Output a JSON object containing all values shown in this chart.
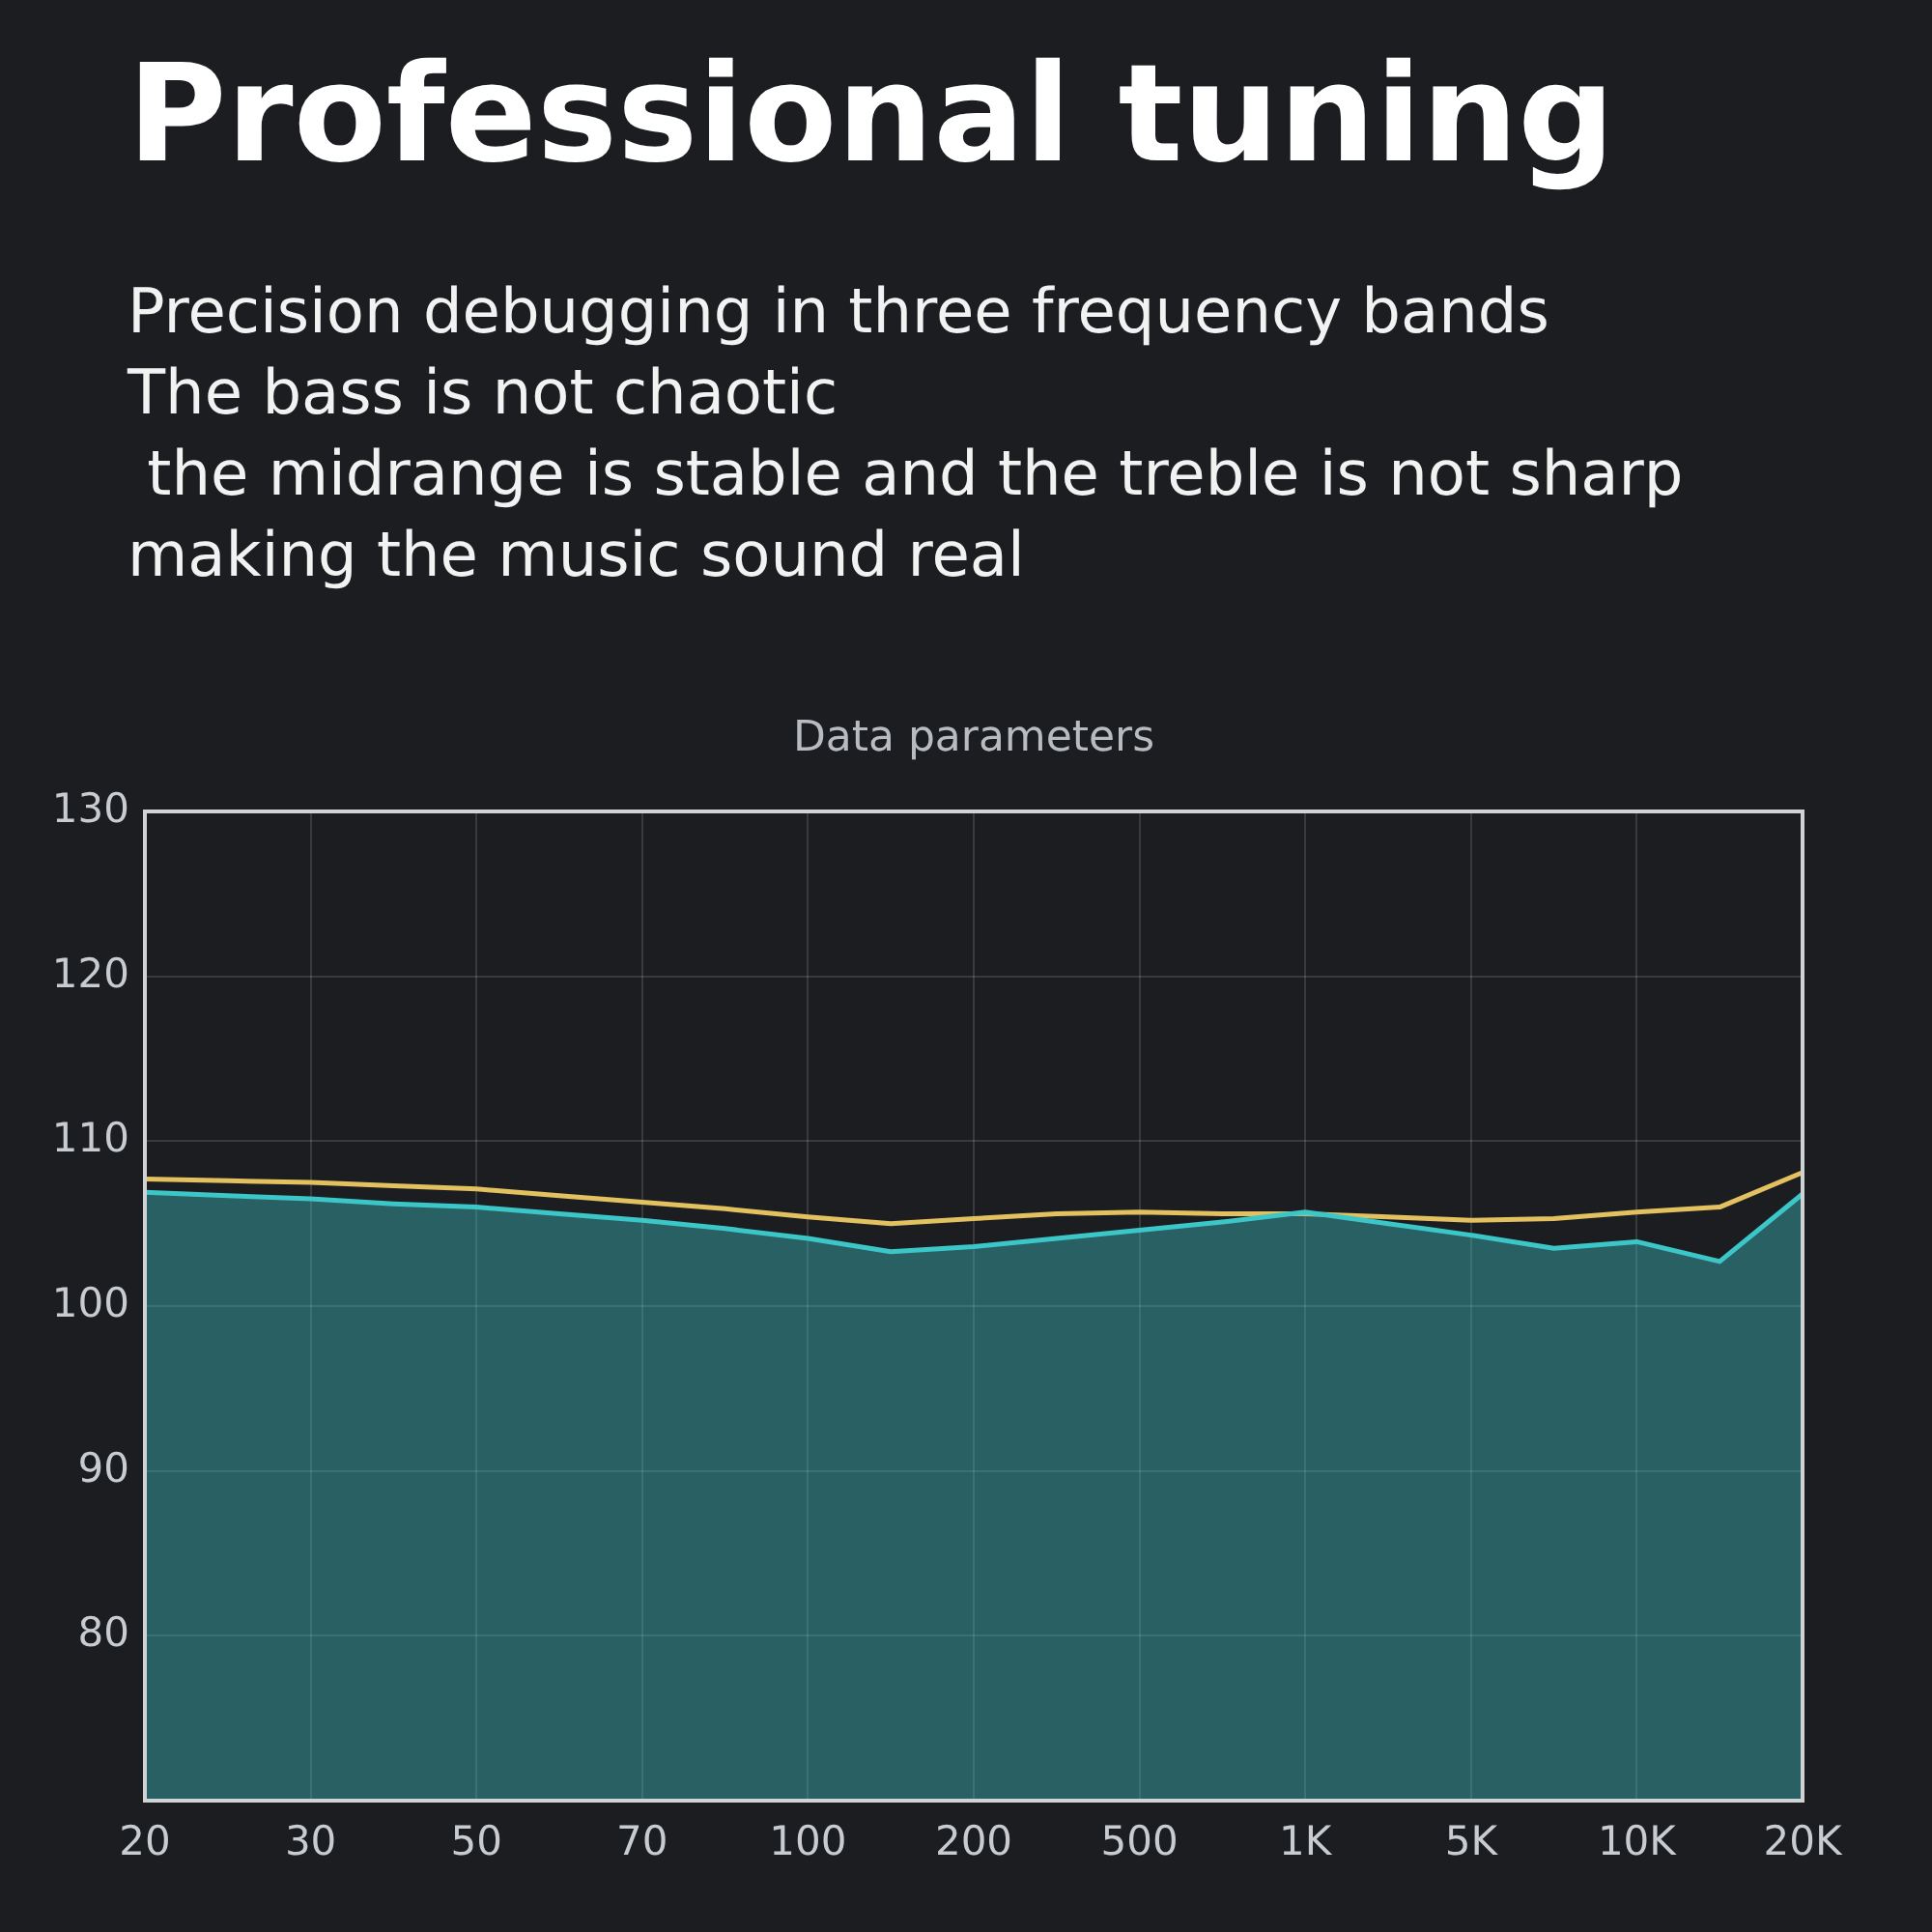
{
  "chart_data": {
    "type": "area",
    "title": "Professional tuning",
    "subtitle": "Precision debugging in three frequency bands\nThe bass is not chaotic\n the midrange is stable and the treble is not sharp\nmaking the music sound real",
    "annotations": [
      "Data parameters"
    ],
    "categories": [
      "20",
      null,
      "30",
      null,
      "50",
      null,
      "70",
      null,
      "100",
      null,
      "200",
      null,
      "500",
      null,
      "1K",
      null,
      "5K",
      null,
      "10K",
      null,
      "20K"
    ],
    "ylim": [
      70,
      130
    ],
    "yticks": [
      80,
      90,
      100,
      110,
      120,
      130
    ],
    "grid": true,
    "marker": "none",
    "series": [
      {
        "type": "area",
        "color": "#3cc6c8",
        "values": [
          106.9,
          106.7,
          106.5,
          106.2,
          106.0,
          105.6,
          105.2,
          104.7,
          104.1,
          103.3,
          103.6,
          104.1,
          104.6,
          105.1,
          105.7,
          105.0,
          104.3,
          103.5,
          103.9,
          102.7,
          106.8
        ]
      },
      {
        "type": "line",
        "color": "#e3c060",
        "values": [
          107.7,
          107.6,
          107.5,
          107.3,
          107.1,
          106.7,
          106.3,
          105.9,
          105.4,
          105.0,
          105.3,
          105.6,
          105.7,
          105.6,
          105.6,
          105.4,
          105.2,
          105.3,
          105.7,
          106.0,
          108.1
        ]
      }
    ]
  }
}
